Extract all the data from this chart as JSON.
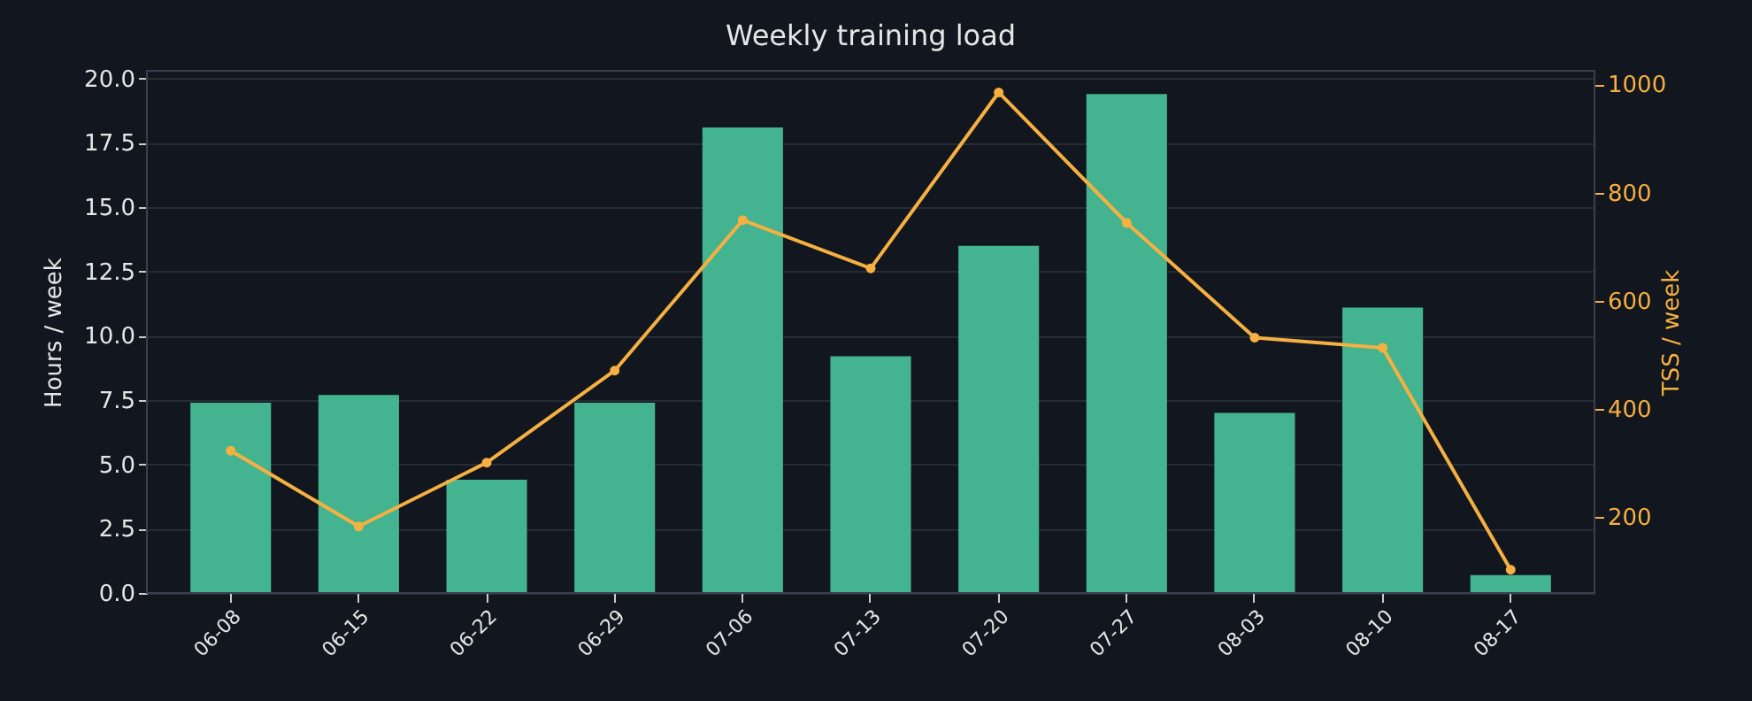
{
  "chart_data": {
    "type": "bar",
    "title": "Weekly training load",
    "ylabel": "Hours / week",
    "y2label": "TSS / week",
    "categories": [
      "06-08",
      "06-15",
      "06-22",
      "06-29",
      "07-06",
      "07-13",
      "07-20",
      "07-27",
      "08-03",
      "08-10",
      "08-17"
    ],
    "series": [
      {
        "color": "#43b48f",
        "values": [
          7.4,
          7.7,
          4.4,
          7.4,
          18.1,
          9.2,
          13.5,
          19.4,
          7.0,
          11.1,
          0.7
        ]
      },
      {
        "type": "line",
        "axis": "y2",
        "color": "#f6b042",
        "marker": "circle",
        "line_style": "solid",
        "values": [
          323,
          183,
          301,
          471,
          749,
          660,
          985,
          744,
          532,
          513,
          103
        ]
      }
    ],
    "ylim": [
      0,
      20.3
    ],
    "yticks": [
      {
        "value": 0,
        "label": "0.0"
      },
      2.5,
      {
        "value": 5,
        "label": "5.0"
      },
      7.5,
      {
        "value": 10,
        "label": "10.0"
      },
      12.5,
      {
        "value": 15,
        "label": "15.0"
      },
      17.5,
      {
        "value": 20,
        "label": "20.0"
      }
    ],
    "y2lim": [
      60,
      1025
    ],
    "y2ticks": [
      200,
      400,
      600,
      800,
      1000
    ],
    "grid": "y"
  }
}
